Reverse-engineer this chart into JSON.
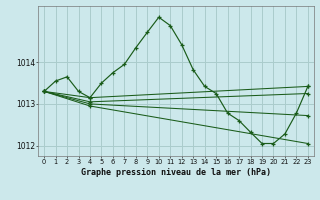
{
  "title": "Graphe pression niveau de la mer (hPa)",
  "bg_color": "#cce8eb",
  "grid_color": "#aacccc",
  "line_color": "#1a5c1a",
  "xmin": -0.5,
  "xmax": 23.5,
  "ymin": 1011.75,
  "ymax": 1015.35,
  "yticks": [
    1012,
    1013,
    1014
  ],
  "xticks": [
    0,
    1,
    2,
    3,
    4,
    5,
    6,
    7,
    8,
    9,
    10,
    11,
    12,
    13,
    14,
    15,
    16,
    17,
    18,
    19,
    20,
    21,
    22,
    23
  ],
  "main_x": [
    0,
    1,
    2,
    3,
    4,
    5,
    6,
    7,
    8,
    9,
    10,
    11,
    12,
    13,
    14,
    15,
    16,
    17,
    18,
    19,
    20,
    21,
    22,
    23
  ],
  "main_y": [
    1013.3,
    1013.55,
    1013.65,
    1013.3,
    1013.15,
    1013.5,
    1013.75,
    1013.95,
    1014.35,
    1014.72,
    1015.08,
    1014.88,
    1014.42,
    1013.82,
    1013.42,
    1013.25,
    1012.78,
    1012.6,
    1012.32,
    1012.05,
    1012.05,
    1012.28,
    1012.78,
    1013.42
  ],
  "fan_lines": [
    {
      "x": [
        0,
        4,
        23
      ],
      "y": [
        1013.3,
        1013.15,
        1013.42
      ]
    },
    {
      "x": [
        0,
        4,
        23
      ],
      "y": [
        1013.3,
        1013.05,
        1013.25
      ]
    },
    {
      "x": [
        0,
        4,
        23
      ],
      "y": [
        1013.3,
        1013.0,
        1012.72
      ]
    },
    {
      "x": [
        0,
        4,
        23
      ],
      "y": [
        1013.3,
        1012.95,
        1012.05
      ]
    }
  ]
}
